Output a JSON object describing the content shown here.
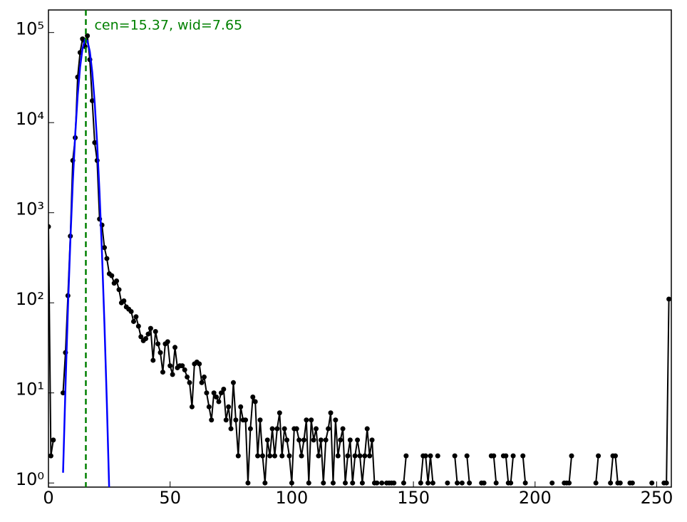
{
  "chart_data": {
    "type": "histogram-points",
    "log_y": true,
    "xlim": [
      0,
      256
    ],
    "ylim": [
      0.9,
      178000
    ],
    "xticks": [
      0,
      50,
      100,
      150,
      200,
      250
    ],
    "yticks": [
      {
        "value": 1,
        "label": "10⁰"
      },
      {
        "value": 10,
        "label": "10¹"
      },
      {
        "value": 100,
        "label": "10²"
      },
      {
        "value": 1000,
        "label": "10³"
      },
      {
        "value": 10000,
        "label": "10⁴"
      },
      {
        "value": 100000,
        "label": "10⁵"
      }
    ],
    "annotation": "cen=15.37, wid=7.65",
    "annotation_color": "#008000",
    "vline": {
      "x": 15.37,
      "color": "#008000"
    },
    "series": [
      {
        "color": "#000000",
        "x": [
          0,
          1,
          2,
          3,
          4,
          5,
          6,
          7,
          8,
          9,
          10,
          11,
          12,
          13,
          14,
          15,
          16,
          17,
          18,
          19,
          20,
          21,
          22,
          23,
          24,
          25,
          26,
          27,
          28,
          29,
          30,
          31,
          32,
          33,
          34,
          35,
          36,
          37,
          38,
          39,
          40,
          41,
          42,
          43,
          44,
          45,
          46,
          47,
          48,
          49,
          50,
          51,
          52,
          53,
          54,
          55,
          56,
          57,
          58,
          59,
          60,
          61,
          62,
          63,
          64,
          65,
          66,
          67,
          68,
          69,
          70,
          71,
          72,
          73,
          74,
          75,
          76,
          77,
          78,
          79,
          80,
          81,
          82,
          83,
          84,
          85,
          86,
          87,
          88,
          89,
          90,
          91,
          92,
          93,
          94,
          95,
          96,
          97,
          98,
          99,
          100,
          101,
          102,
          103,
          104,
          105,
          106,
          107,
          108,
          109,
          110,
          111,
          112,
          113,
          114,
          115,
          116,
          117,
          118,
          119,
          120,
          121,
          122,
          123,
          124,
          125,
          126,
          127,
          128,
          129,
          130,
          131,
          132,
          133,
          134,
          135,
          136,
          137,
          138,
          139,
          140,
          141,
          142,
          143,
          144,
          145,
          146,
          147,
          148,
          149,
          150,
          151,
          152,
          153,
          154,
          155,
          156,
          157,
          158,
          159,
          160,
          161,
          162,
          163,
          164,
          165,
          166,
          167,
          168,
          169,
          170,
          171,
          172,
          173,
          174,
          175,
          176,
          177,
          178,
          179,
          180,
          181,
          182,
          183,
          184,
          185,
          186,
          187,
          188,
          189,
          190,
          191,
          192,
          193,
          194,
          195,
          196,
          197,
          198,
          199,
          200,
          201,
          202,
          203,
          204,
          205,
          206,
          207,
          208,
          209,
          210,
          211,
          212,
          213,
          214,
          215,
          216,
          217,
          218,
          219,
          220,
          221,
          222,
          223,
          224,
          225,
          226,
          227,
          228,
          229,
          230,
          231,
          232,
          233,
          234,
          235,
          236,
          237,
          238,
          239,
          240,
          241,
          242,
          243,
          244,
          245,
          246,
          247,
          248,
          249,
          250,
          251,
          252,
          253,
          254,
          255
        ],
        "values": [
          700,
          2,
          3,
          null,
          null,
          null,
          10,
          28,
          120,
          550,
          3800,
          6800,
          32000,
          60000,
          85000,
          70000,
          92000,
          50000,
          17500,
          6000,
          3800,
          850,
          730,
          410,
          310,
          210,
          200,
          165,
          175,
          140,
          100,
          105,
          90,
          85,
          80,
          62,
          70,
          55,
          42,
          38,
          40,
          45,
          52,
          23,
          48,
          35,
          28,
          17,
          35,
          37,
          20,
          16,
          32,
          19,
          20,
          20,
          18,
          15,
          13,
          7,
          21,
          22,
          21,
          13,
          15,
          10,
          7,
          5,
          10,
          9,
          8,
          10,
          11,
          5,
          7,
          4,
          13,
          5,
          2,
          7,
          5,
          5,
          1,
          4,
          9,
          8,
          2,
          5,
          2,
          1,
          3,
          2,
          4,
          2,
          4,
          6,
          2,
          4,
          3,
          2,
          1,
          4,
          4,
          3,
          2,
          3,
          5,
          1,
          5,
          3,
          4,
          2,
          3,
          1,
          3,
          4,
          6,
          1,
          5,
          2,
          3,
          4,
          1,
          2,
          3,
          1,
          2,
          3,
          2,
          1,
          2,
          4,
          2,
          3,
          1,
          1,
          null,
          1,
          null,
          1,
          1,
          1,
          1,
          null,
          null,
          null,
          1,
          2,
          null,
          null,
          null,
          null,
          null,
          1,
          2,
          2,
          1,
          2,
          1,
          null,
          2,
          null,
          null,
          null,
          1,
          null,
          null,
          2,
          1,
          null,
          1,
          null,
          2,
          1,
          null,
          null,
          null,
          null,
          1,
          1,
          null,
          null,
          2,
          2,
          1,
          null,
          null,
          2,
          2,
          1,
          1,
          2,
          null,
          null,
          null,
          2,
          1,
          null,
          null,
          null,
          null,
          null,
          null,
          null,
          null,
          null,
          null,
          1,
          null,
          null,
          null,
          null,
          1,
          1,
          1,
          2,
          null,
          null,
          null,
          null,
          null,
          null,
          null,
          null,
          null,
          1,
          2,
          null,
          null,
          null,
          null,
          1,
          2,
          2,
          1,
          1,
          null,
          null,
          null,
          1,
          1,
          null,
          null,
          null,
          null,
          null,
          null,
          null,
          1,
          null,
          null,
          null,
          null,
          1,
          1,
          110
        ]
      },
      {
        "color": "#0000ff",
        "line_only": true,
        "x": [
          6,
          7,
          8,
          9,
          10,
          11,
          12,
          13,
          14,
          15,
          16,
          17,
          18,
          19,
          20,
          21,
          22,
          23,
          24,
          25
        ],
        "values": [
          1.3,
          11.8,
          86,
          493,
          2170,
          7400,
          19900,
          41200,
          66400,
          83300,
          81200,
          61600,
          36300,
          16700,
          5940,
          1650,
          355,
          59,
          7.7,
          0.78
        ]
      }
    ]
  }
}
